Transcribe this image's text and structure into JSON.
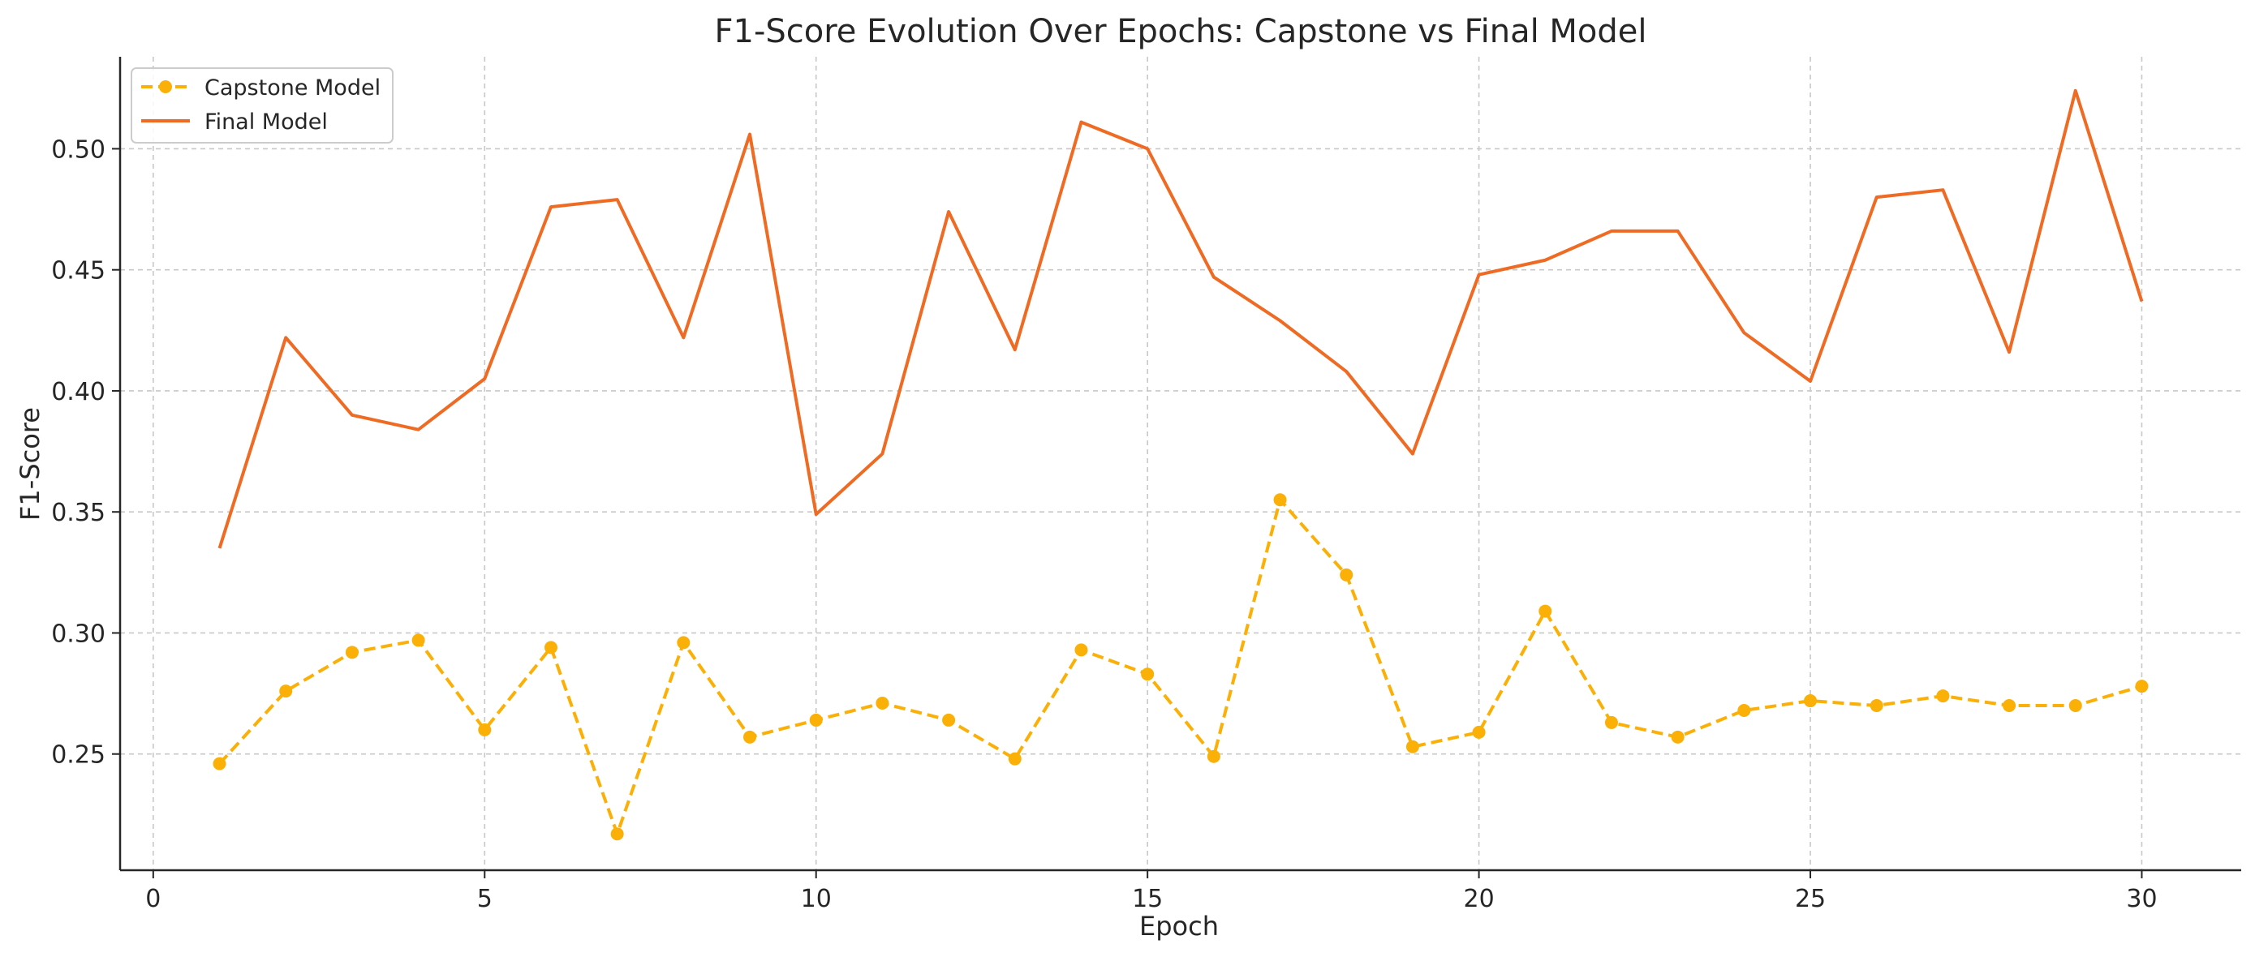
{
  "chart_data": {
    "type": "line",
    "title": "F1-Score Evolution Over Epochs: Capstone vs Final Model",
    "xlabel": "Epoch",
    "ylabel": "F1-Score",
    "xlim": [
      -0.5,
      31.5
    ],
    "ylim": [
      0.202,
      0.538
    ],
    "xticks": [
      0,
      5,
      10,
      15,
      20,
      25,
      30
    ],
    "yticks": [
      0.25,
      0.3,
      0.35,
      0.4,
      0.45,
      0.5
    ],
    "ytick_labels": [
      "0.25",
      "0.30",
      "0.35",
      "0.40",
      "0.45",
      "0.50"
    ],
    "grid": true,
    "legend_position": "top-left",
    "x": [
      1,
      2,
      3,
      4,
      5,
      6,
      7,
      8,
      9,
      10,
      11,
      12,
      13,
      14,
      15,
      16,
      17,
      18,
      19,
      20,
      21,
      22,
      23,
      24,
      25,
      26,
      27,
      28,
      29,
      30
    ],
    "series": [
      {
        "name": "Capstone Model",
        "color": "#fbb008",
        "style": "dashed-markers",
        "values": [
          0.246,
          0.276,
          0.292,
          0.297,
          0.26,
          0.294,
          0.217,
          0.296,
          0.257,
          0.264,
          0.271,
          0.264,
          0.248,
          0.293,
          0.283,
          0.249,
          0.355,
          0.324,
          0.253,
          0.259,
          0.309,
          0.263,
          0.257,
          0.268,
          0.272,
          0.27,
          0.274,
          0.27,
          0.27,
          0.278
        ]
      },
      {
        "name": "Final Model",
        "color": "#ef6b23",
        "style": "solid",
        "values": [
          0.335,
          0.422,
          0.39,
          0.384,
          0.405,
          0.476,
          0.479,
          0.422,
          0.506,
          0.349,
          0.374,
          0.474,
          0.417,
          0.511,
          0.5,
          0.447,
          0.429,
          0.408,
          0.374,
          0.448,
          0.454,
          0.466,
          0.466,
          0.424,
          0.404,
          0.48,
          0.483,
          0.416,
          0.524,
          0.437
        ]
      }
    ]
  }
}
